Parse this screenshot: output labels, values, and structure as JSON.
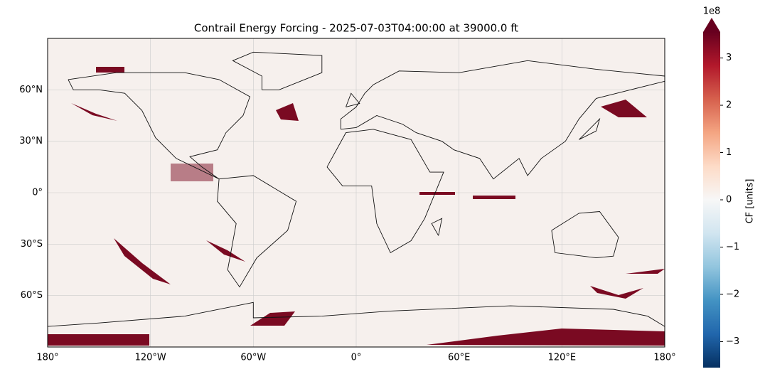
{
  "chart_data": {
    "type": "map",
    "title": "Contrail Energy Forcing - 2025-07-03T04:00:00 at 39000.0 ft",
    "xlim": [
      -180,
      180
    ],
    "ylim": [
      -90,
      90
    ],
    "grid": true,
    "xticks": [
      {
        "value": -180,
        "label": "180°"
      },
      {
        "value": -120,
        "label": "120°W"
      },
      {
        "value": -60,
        "label": "60°W"
      },
      {
        "value": 0,
        "label": "0°"
      },
      {
        "value": 60,
        "label": "60°E"
      },
      {
        "value": 120,
        "label": "120°E"
      },
      {
        "value": 180,
        "label": "180°"
      }
    ],
    "yticks": [
      {
        "value": -60,
        "label": "60°S"
      },
      {
        "value": -30,
        "label": "30°S"
      },
      {
        "value": 0,
        "label": "0°"
      },
      {
        "value": 30,
        "label": "30°N"
      },
      {
        "value": 60,
        "label": "60°N"
      }
    ],
    "colorbar": {
      "label": "CF [units]",
      "offset_label": "1e8",
      "clim": [
        -3.55,
        3.55
      ],
      "ticks": [
        {
          "value": -3,
          "label": "−3"
        },
        {
          "value": -2,
          "label": "−2"
        },
        {
          "value": -1,
          "label": "−1"
        },
        0,
        1,
        2,
        3
      ]
    }
  }
}
